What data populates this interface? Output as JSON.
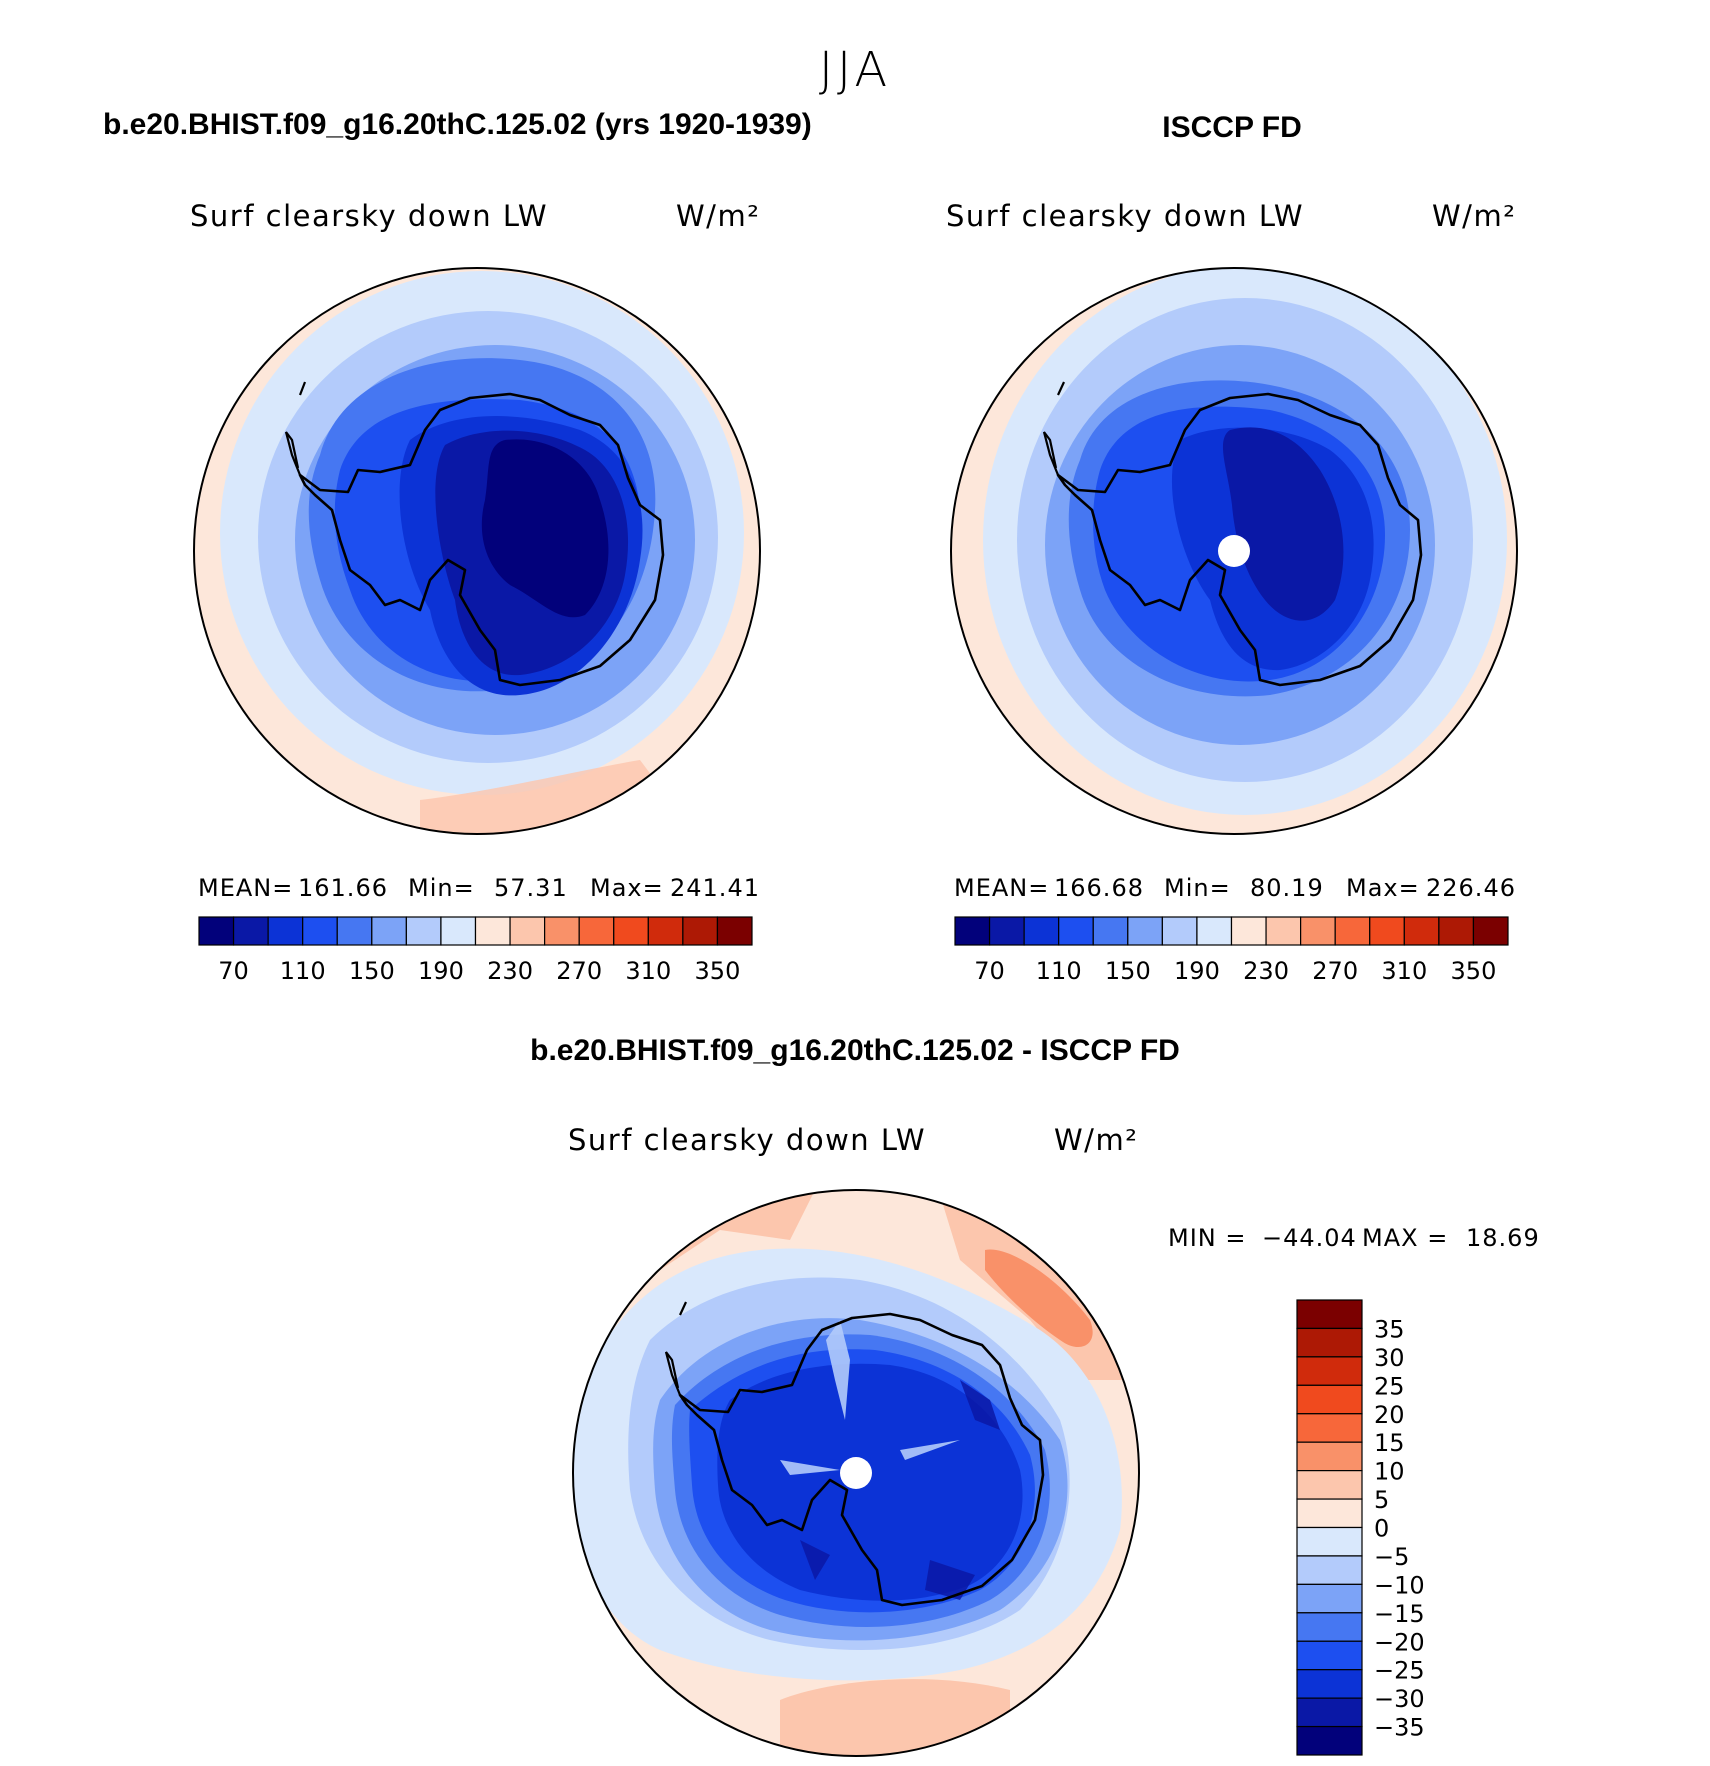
{
  "figure": {
    "title": "JJA"
  },
  "chart_data": [
    {
      "type": "heatmap",
      "title": "b.e20.BHIST.f09_g16.20thC.125.02 (yrs 1920-1939)",
      "variable": "Surf clearsky down LW",
      "units": "W/m²",
      "projection": "south polar stereographic",
      "stats": {
        "mean_label": "MEAN=",
        "mean": "161.66",
        "min_label": "Min=",
        "min": "57.31",
        "max_label": "Max=",
        "max": "241.41"
      },
      "colorbar": {
        "orientation": "horizontal",
        "boundaries": [
          70,
          90,
          110,
          130,
          150,
          170,
          190,
          210,
          230,
          250,
          270,
          290,
          310,
          330,
          350
        ],
        "tick_labels": [
          "70",
          "110",
          "150",
          "190",
          "230",
          "270",
          "310",
          "350"
        ],
        "colors": [
          "#02017b",
          "#0a18a6",
          "#0c33d6",
          "#1d4ff0",
          "#4677f2",
          "#7ca3f7",
          "#b3cbfb",
          "#d9e8fc",
          "#fde7da",
          "#fcc6ad",
          "#f99169",
          "#f7673a",
          "#f04a1e",
          "#d02b0c",
          "#ad1905",
          "#7b0000"
        ]
      },
      "field_levels_center_to_edge": [
        70,
        90,
        110,
        130,
        150,
        170,
        190,
        210,
        230
      ]
    },
    {
      "type": "heatmap",
      "title": "ISCCP FD",
      "variable": "Surf clearsky down LW",
      "units": "W/m²",
      "projection": "south polar stereographic",
      "stats": {
        "mean_label": "MEAN=",
        "mean": "166.68",
        "min_label": "Min=",
        "min": "80.19",
        "max_label": "Max=",
        "max": "226.46"
      },
      "colorbar": {
        "orientation": "horizontal",
        "boundaries": [
          70,
          90,
          110,
          130,
          150,
          170,
          190,
          210,
          230,
          250,
          270,
          290,
          310,
          330,
          350
        ],
        "tick_labels": [
          "70",
          "110",
          "150",
          "190",
          "230",
          "270",
          "310",
          "350"
        ],
        "colors": [
          "#02017b",
          "#0a18a6",
          "#0c33d6",
          "#1d4ff0",
          "#4677f2",
          "#7ca3f7",
          "#b3cbfb",
          "#d9e8fc",
          "#fde7da",
          "#fcc6ad",
          "#f99169",
          "#f7673a",
          "#f04a1e",
          "#d02b0c",
          "#ad1905",
          "#7b0000"
        ]
      },
      "field_levels_center_to_edge": [
        90,
        110,
        130,
        150,
        170,
        190,
        210,
        230
      ]
    },
    {
      "type": "heatmap",
      "title": "b.e20.BHIST.f09_g16.20thC.125.02 - ISCCP FD",
      "variable": "Surf clearsky down LW",
      "units": "W/m²",
      "projection": "south polar stereographic",
      "stats": {
        "min_label": "MIN =",
        "min": "−44.04",
        "max_label": "MAX =",
        "max": "18.69"
      },
      "colorbar": {
        "orientation": "vertical",
        "boundaries": [
          35,
          30,
          25,
          20,
          15,
          10,
          5,
          0,
          -5,
          -10,
          -15,
          -20,
          -25,
          -30,
          -35
        ],
        "tick_labels": [
          "35",
          "30",
          "25",
          "20",
          "15",
          "10",
          "5",
          "0",
          "−5",
          "−10",
          "−15",
          "−20",
          "−25",
          "−30",
          "−35"
        ],
        "colors_top_to_bottom": [
          "#7b0000",
          "#ad1905",
          "#d02b0c",
          "#f04a1e",
          "#f7673a",
          "#f99169",
          "#fcc6ad",
          "#fde7da",
          "#d9e8fc",
          "#b3cbfb",
          "#7ca3f7",
          "#4677f2",
          "#1d4ff0",
          "#0c33d6",
          "#0a18a6",
          "#02017b"
        ]
      }
    }
  ]
}
